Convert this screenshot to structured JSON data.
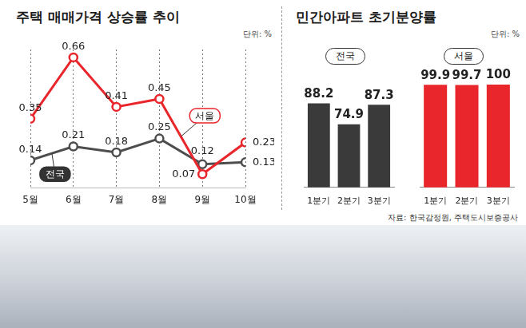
{
  "chart_data": [
    {
      "type": "line",
      "title": "주택 매매가격 상승률 추이",
      "subtitle": "단위: %",
      "categories": [
        "5월",
        "6월",
        "7월",
        "8월",
        "9월",
        "10월"
      ],
      "series": [
        {
          "name": "서울",
          "color": "#e8262b",
          "marker": "circle",
          "values": [
            0.35,
            0.66,
            0.41,
            0.45,
            0.07,
            0.23
          ]
        },
        {
          "name": "전국",
          "color": "#4d4d4d",
          "marker": "circle",
          "values": [
            0.14,
            0.21,
            0.18,
            0.25,
            0.12,
            0.13
          ]
        }
      ],
      "ylim": [
        0,
        0.7
      ],
      "grid": true,
      "data_labels": true,
      "tick_labels": "x"
    },
    {
      "type": "bar",
      "title": "민간아파트 초기분양률",
      "subtitle": "단위: %",
      "categories": [
        "1분기",
        "2분기",
        "3분기"
      ],
      "series": [
        {
          "name": "전국",
          "color": "#3a3a3a",
          "values": [
            88.2,
            74.9,
            87.3
          ]
        },
        {
          "name": "서울",
          "color": "#e8262b",
          "values": [
            99.9,
            99.7,
            100
          ]
        }
      ],
      "ylim": [
        35,
        100
      ],
      "grid": false,
      "data_labels": true,
      "tick_labels": "x"
    }
  ],
  "source": "자료: 한국감정원, 주택도시보증공사"
}
